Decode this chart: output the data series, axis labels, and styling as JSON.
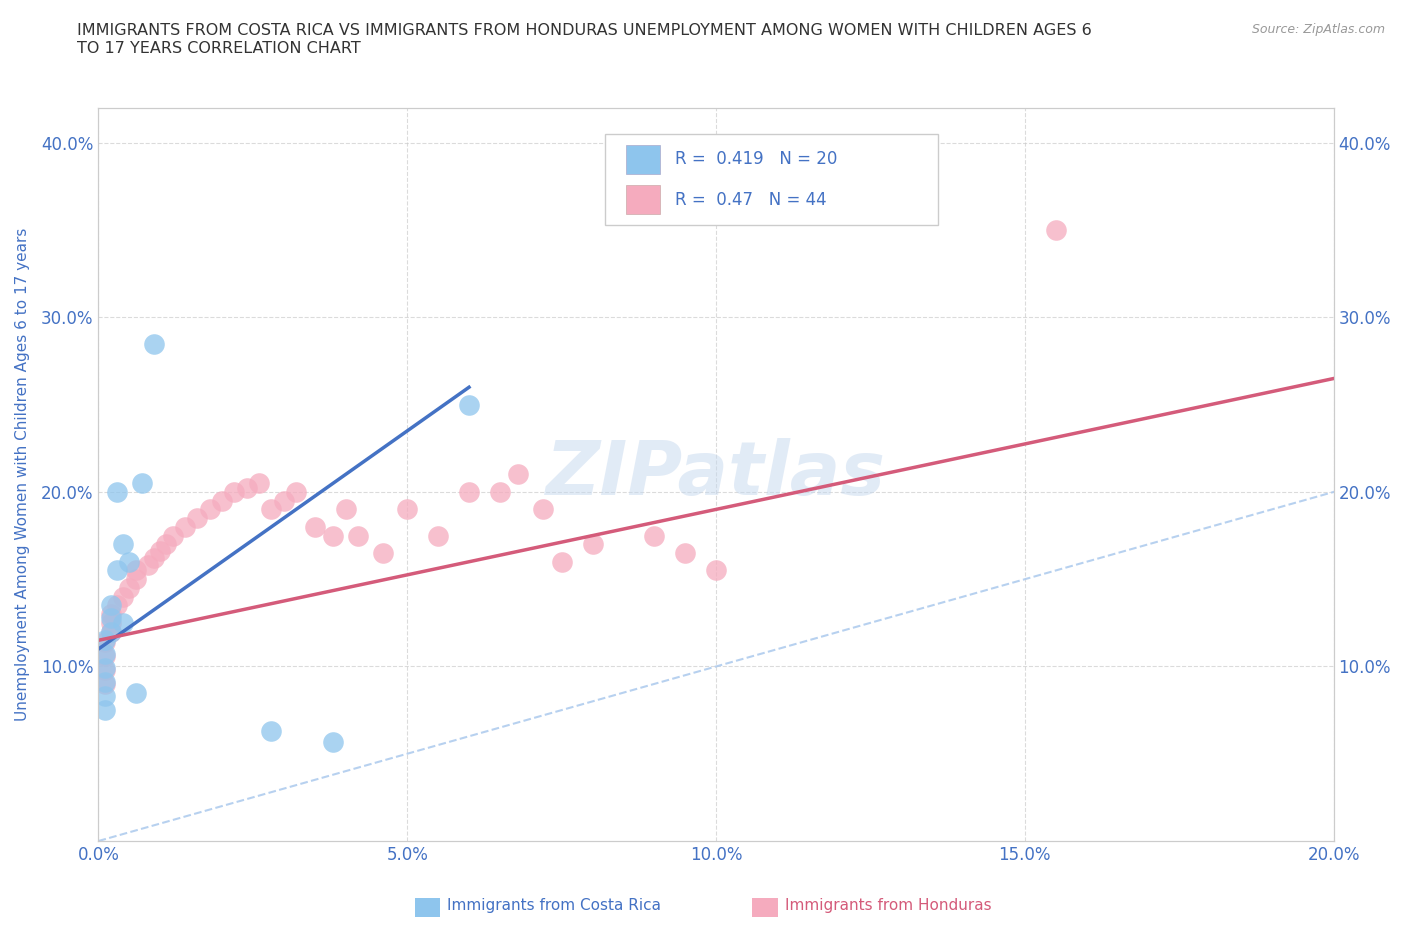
{
  "title": "IMMIGRANTS FROM COSTA RICA VS IMMIGRANTS FROM HONDURAS UNEMPLOYMENT AMONG WOMEN WITH CHILDREN AGES 6\nTO 17 YEARS CORRELATION CHART",
  "source": "Source: ZipAtlas.com",
  "ylabel": "Unemployment Among Women with Children Ages 6 to 17 years",
  "xlim": [
    0.0,
    0.2
  ],
  "ylim": [
    0.0,
    0.42
  ],
  "xticks": [
    0.0,
    0.05,
    0.1,
    0.15,
    0.2
  ],
  "yticks": [
    0.1,
    0.2,
    0.3,
    0.4
  ],
  "xticklabels": [
    "0.0%",
    "5.0%",
    "10.0%",
    "15.0%",
    "20.0%"
  ],
  "yticklabels_left": [
    "10.0%",
    "20.0%",
    "30.0%",
    "40.0%"
  ],
  "yticklabels_right": [
    "10.0%",
    "20.0%",
    "30.0%",
    "40.0%"
  ],
  "costa_rica_color": "#8EC5ED",
  "honduras_color": "#F5ABBE",
  "costa_rica_line_color": "#4472C4",
  "honduras_line_color": "#D45B7A",
  "r_cr": 0.419,
  "n_cr": 20,
  "r_hn": 0.47,
  "n_hn": 44,
  "costa_rica_x": [
    0.001,
    0.001,
    0.001,
    0.001,
    0.001,
    0.001,
    0.002,
    0.002,
    0.002,
    0.003,
    0.003,
    0.004,
    0.004,
    0.005,
    0.006,
    0.007,
    0.009,
    0.028,
    0.038,
    0.06
  ],
  "costa_rica_y": [
    0.075,
    0.083,
    0.091,
    0.099,
    0.107,
    0.115,
    0.12,
    0.128,
    0.135,
    0.155,
    0.2,
    0.125,
    0.17,
    0.16,
    0.085,
    0.205,
    0.285,
    0.063,
    0.057,
    0.25
  ],
  "honduras_x": [
    0.001,
    0.001,
    0.001,
    0.001,
    0.002,
    0.002,
    0.002,
    0.003,
    0.004,
    0.005,
    0.006,
    0.006,
    0.008,
    0.009,
    0.01,
    0.011,
    0.012,
    0.014,
    0.016,
    0.018,
    0.02,
    0.022,
    0.024,
    0.026,
    0.028,
    0.03,
    0.032,
    0.035,
    0.038,
    0.04,
    0.042,
    0.046,
    0.05,
    0.055,
    0.06,
    0.065,
    0.068,
    0.072,
    0.075,
    0.08,
    0.09,
    0.095,
    0.1,
    0.155
  ],
  "honduras_y": [
    0.09,
    0.098,
    0.106,
    0.114,
    0.12,
    0.125,
    0.13,
    0.135,
    0.14,
    0.145,
    0.15,
    0.155,
    0.158,
    0.162,
    0.166,
    0.17,
    0.175,
    0.18,
    0.185,
    0.19,
    0.195,
    0.2,
    0.202,
    0.205,
    0.19,
    0.195,
    0.2,
    0.18,
    0.175,
    0.19,
    0.175,
    0.165,
    0.19,
    0.175,
    0.2,
    0.2,
    0.21,
    0.19,
    0.16,
    0.17,
    0.175,
    0.165,
    0.155,
    0.35
  ],
  "cr_line_x0": 0.0,
  "cr_line_x1": 0.06,
  "cr_line_y0": 0.11,
  "cr_line_y1": 0.26,
  "hn_line_x0": 0.0,
  "hn_line_x1": 0.2,
  "hn_line_y0": 0.115,
  "hn_line_y1": 0.265,
  "diag_color": "#B0CCEE",
  "watermark": "ZIPatlas",
  "background_color": "#FFFFFF",
  "grid_color": "#CCCCCC",
  "title_color": "#333333",
  "axis_label_color": "#4472C4",
  "tick_label_color": "#4472C4"
}
